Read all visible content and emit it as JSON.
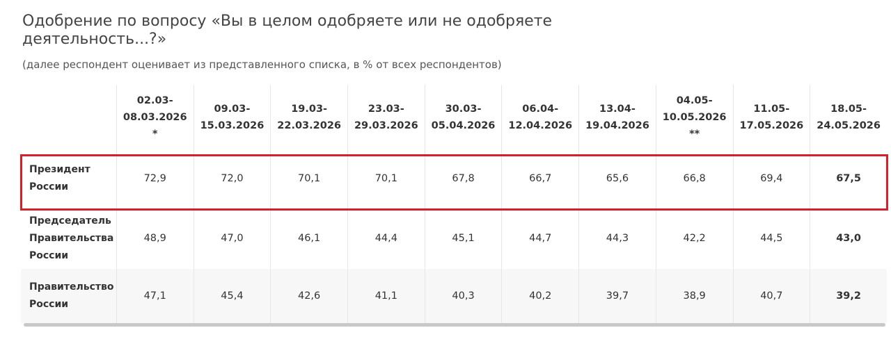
{
  "header": {
    "title": "Одобрение по вопросу «Вы в целом одобряете или не одобряете деятельность...?»",
    "subtitle": "(далее респондент оценивает из представленного списка, в % от всех респондентов)"
  },
  "table": {
    "columns": [
      {
        "label": "02.03-08.03.2026",
        "note": "*"
      },
      {
        "label": "09.03-15.03.2026"
      },
      {
        "label": "19.03-22.03.2026"
      },
      {
        "label": "23.03-29.03.2026"
      },
      {
        "label": "30.03-05.04.2026"
      },
      {
        "label": "06.04-12.04.2026"
      },
      {
        "label": "13.04-19.04.2026"
      },
      {
        "label": "04.05-10.05.2026",
        "note": "**"
      },
      {
        "label": "11.05-17.05.2026"
      },
      {
        "label": "18.05-24.05.2026"
      }
    ],
    "rows": [
      {
        "name": "Президент России",
        "values": [
          "72,9",
          "72,0",
          "70,1",
          "70,1",
          "67,8",
          "66,7",
          "65,6",
          "66,8",
          "69,4",
          "67,5"
        ]
      },
      {
        "name": "Председатель Правительства России",
        "values": [
          "48,9",
          "47,0",
          "46,1",
          "44,4",
          "45,1",
          "44,7",
          "44,3",
          "42,2",
          "44,5",
          "43,0"
        ]
      },
      {
        "name": "Правительство России",
        "values": [
          "47,1",
          "45,4",
          "42,6",
          "41,1",
          "40,3",
          "40,2",
          "39,7",
          "38,9",
          "40,7",
          "39,2"
        ]
      }
    ]
  }
}
